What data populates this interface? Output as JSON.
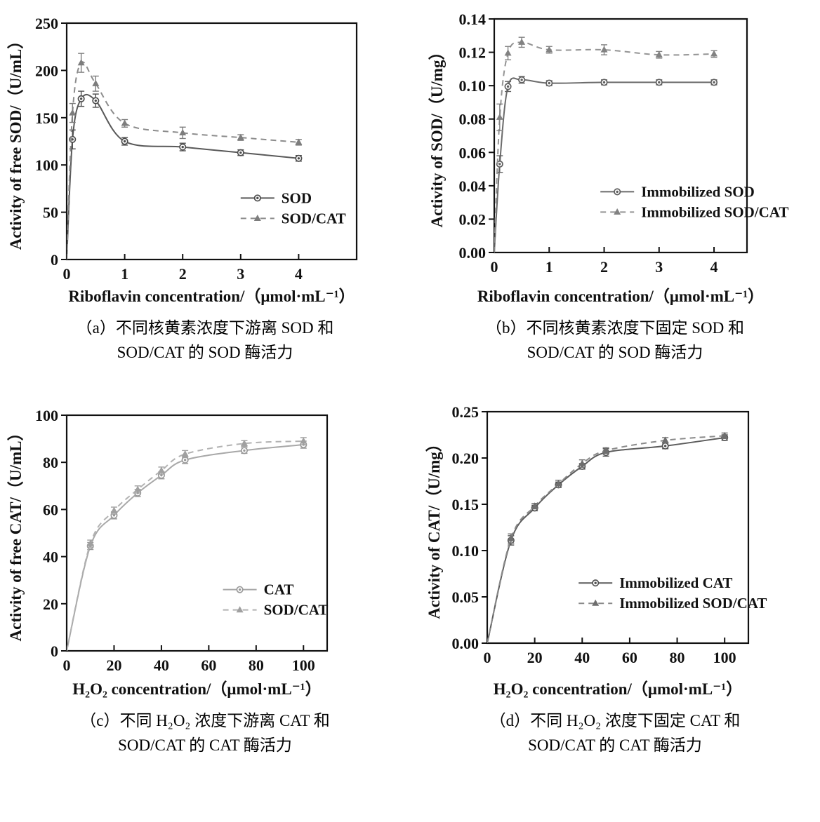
{
  "page": {
    "background": "#ffffff",
    "text_color": "#111111"
  },
  "chart_data": [
    {
      "id": "a",
      "type": "line",
      "xlabel": "Riboflavin concentration/（μmol·mL⁻¹）",
      "ylabel": "Activity of free SOD/（U/mL）",
      "xlim": [
        0,
        5.0
      ],
      "ylim": [
        0,
        250
      ],
      "xticks": [
        0,
        1,
        2,
        3,
        4
      ],
      "yticks": [
        0,
        50,
        100,
        150,
        200,
        250
      ],
      "xdec": 0,
      "ydec": 0,
      "grid": false,
      "legend": {
        "fx": 0.6,
        "fy": 0.74
      },
      "margins": {
        "l": 95,
        "r": 76,
        "t": 33,
        "b": 70,
        "ylabel_x": 30
      },
      "series": [
        {
          "name": "SOD",
          "style": "solid",
          "marker": "circle",
          "color": "#595959",
          "marker_color": "#4d4d4d",
          "x": [
            0,
            0.1,
            0.25,
            0.5,
            1,
            2,
            3,
            4
          ],
          "y": [
            0,
            127,
            170,
            168,
            125,
            119,
            113,
            107
          ],
          "err": [
            0,
            10,
            8,
            7,
            4,
            4,
            3,
            3
          ]
        },
        {
          "name": "SOD/CAT",
          "style": "dashed",
          "marker": "triangle",
          "color": "#8c8c8c",
          "marker_color": "#7d7d7d",
          "x": [
            0,
            0.1,
            0.25,
            0.5,
            1,
            2,
            3,
            4
          ],
          "y": [
            0,
            155,
            208,
            186,
            144,
            134,
            129,
            124
          ],
          "err": [
            0,
            10,
            10,
            8,
            4,
            6,
            3,
            3
          ]
        }
      ],
      "caption": [
        "（a）不同核黄素浓度下游离 SOD 和",
        "SOD/CAT 的 SOD 酶活力"
      ]
    },
    {
      "id": "b",
      "type": "line",
      "xlabel": "Riboflavin concentration/（μmol·mL⁻¹）",
      "ylabel": "Activity of SOD/（U/mg）",
      "xlim": [
        0,
        4.6
      ],
      "ylim": [
        0,
        0.14
      ],
      "xticks": [
        0,
        1,
        2,
        3,
        4
      ],
      "yticks": [
        0,
        0.02,
        0.04,
        0.06,
        0.08,
        0.1,
        0.12,
        0.14
      ],
      "xdec": 0,
      "ydec": 2,
      "grid": false,
      "legend": {
        "fx": 0.42,
        "fy": 0.74
      },
      "margins": {
        "l": 120,
        "r": 104,
        "t": 27,
        "b": 80,
        "ylabel_x": 46
      },
      "series": [
        {
          "name": "Immobilized SOD",
          "style": "solid",
          "marker": "circle",
          "color": "#6b6b6b",
          "marker_color": "#5f5f5f",
          "x": [
            0,
            0.1,
            0.25,
            0.5,
            1,
            2,
            3,
            4
          ],
          "y": [
            0,
            0.053,
            0.0995,
            0.1035,
            0.1015,
            0.102,
            0.102,
            0.102
          ],
          "err": [
            0,
            0.005,
            0.003,
            0.002,
            0.0015,
            0.0015,
            0.0015,
            0.0015
          ]
        },
        {
          "name": "Immobilized SOD/CAT",
          "style": "dashed",
          "marker": "triangle",
          "color": "#949494",
          "marker_color": "#828282",
          "x": [
            0,
            0.1,
            0.25,
            0.5,
            1,
            2,
            3,
            4
          ],
          "y": [
            0,
            0.081,
            0.1195,
            0.126,
            0.1215,
            0.1215,
            0.1185,
            0.119
          ],
          "err": [
            0,
            0.008,
            0.004,
            0.003,
            0.002,
            0.003,
            0.002,
            0.002
          ]
        }
      ],
      "caption": [
        "（b）不同核黄素浓度下固定 SOD 和",
        "SOD/CAT 的 SOD 酶活力"
      ]
    },
    {
      "id": "c",
      "type": "line",
      "xlabel": "H₂O₂ concentration/（μmol·mL⁻¹）",
      "ylabel": "Activity of free CAT/（U/mL）",
      "xlim": [
        0,
        110
      ],
      "ylim": [
        0,
        100
      ],
      "xticks": [
        0,
        20,
        40,
        60,
        80,
        100
      ],
      "yticks": [
        0,
        20,
        40,
        60,
        80,
        100
      ],
      "xdec": 0,
      "ydec": 0,
      "grid": false,
      "legend": {
        "fx": 0.6,
        "fy": 0.74
      },
      "margins": {
        "l": 95,
        "r": 118,
        "t": 32,
        "b": 72,
        "ylabel_x": 30
      },
      "series": [
        {
          "name": "CAT",
          "style": "solid",
          "marker": "circle",
          "color": "#a8a8a8",
          "marker_color": "#999999",
          "x": [
            0,
            10,
            20,
            30,
            40,
            50,
            75,
            100
          ],
          "y": [
            0,
            44.5,
            57.5,
            67,
            74.5,
            81,
            85,
            87.5
          ],
          "err": [
            0,
            1.5,
            1.5,
            1.5,
            1.5,
            1.5,
            1.2,
            1.5
          ]
        },
        {
          "name": "SOD/CAT",
          "style": "dashed",
          "marker": "triangle",
          "color": "#b2b2b2",
          "marker_color": "#a0a0a0",
          "x": [
            0,
            10,
            20,
            30,
            40,
            50,
            75,
            100
          ],
          "y": [
            0,
            45.5,
            59.5,
            68.5,
            76.5,
            83.5,
            88,
            89
          ],
          "err": [
            0,
            1.5,
            1.5,
            1.5,
            1.5,
            1.5,
            1.2,
            1.5
          ]
        }
      ],
      "caption": [
        "（c）不同 H₂O₂ 浓度下游离 CAT 和",
        "SOD/CAT 的 CAT 酶活力"
      ]
    },
    {
      "id": "d",
      "type": "line",
      "xlabel": "H₂O₂ concentration/（μmol·mL⁻¹）",
      "ylabel": "Activity of CAT/（U/mg）",
      "xlim": [
        0,
        110
      ],
      "ylim": [
        0,
        0.25
      ],
      "xticks": [
        0,
        20,
        40,
        60,
        80,
        100
      ],
      "yticks": [
        0,
        0.05,
        0.1,
        0.15,
        0.2,
        0.25
      ],
      "xdec": 0,
      "ydec": 2,
      "grid": false,
      "legend": {
        "fx": 0.35,
        "fy": 0.74
      },
      "margins": {
        "l": 110,
        "r": 102,
        "t": 27,
        "b": 83,
        "ylabel_x": 42
      },
      "series": [
        {
          "name": "Immobilized CAT",
          "style": "solid",
          "marker": "circle",
          "color": "#5c5c5c",
          "marker_color": "#525252",
          "x": [
            0,
            10,
            20,
            30,
            40,
            50,
            75,
            100
          ],
          "y": [
            0,
            0.111,
            0.146,
            0.171,
            0.191,
            0.206,
            0.213,
            0.222
          ],
          "err": [
            0,
            0.005,
            0.003,
            0.003,
            0.003,
            0.004,
            0.003,
            0.003
          ]
        },
        {
          "name": "Immobilized SOD/CAT",
          "style": "dashed",
          "marker": "triangle",
          "color": "#8a8a8a",
          "marker_color": "#6e6e6e",
          "x": [
            0,
            10,
            20,
            30,
            40,
            50,
            75,
            100
          ],
          "y": [
            0,
            0.113,
            0.148,
            0.172,
            0.194,
            0.208,
            0.219,
            0.224
          ],
          "err": [
            0,
            0.005,
            0.003,
            0.004,
            0.004,
            0.003,
            0.003,
            0.003
          ]
        }
      ],
      "caption": [
        "（d）不同 H₂O₂ 浓度下固定 CAT 和",
        "SOD/CAT 的 CAT 酶活力"
      ]
    }
  ]
}
